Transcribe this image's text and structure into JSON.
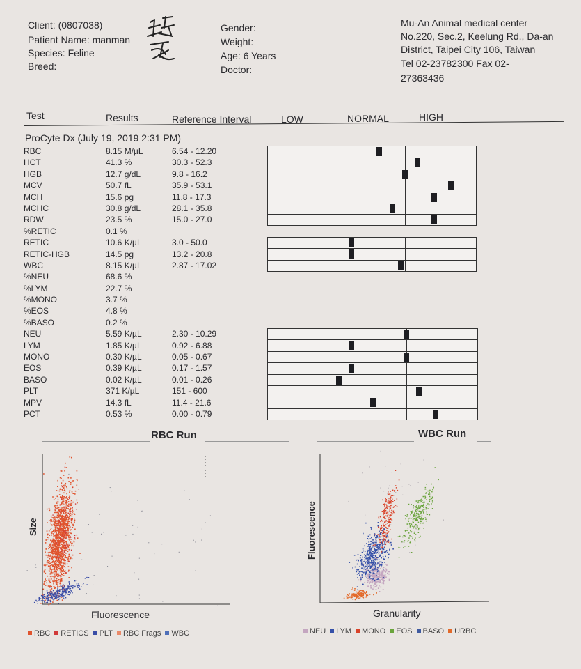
{
  "header": {
    "client": "Client: (0807038)",
    "patient_name": "Patient Name: manman",
    "species": "Species: Feline",
    "breed": "Breed:",
    "gender": "Gender:",
    "weight": "Weight:",
    "age": "Age: 6 Years",
    "doctor": "Doctor:",
    "clinic_name": "Mu-An Animal medical center",
    "clinic_addr1": "No.220, Sec.2, Keelung Rd., Da-an",
    "clinic_addr2": "District, Taipei City 106, Taiwan",
    "clinic_tel": "Tel 02-23782300  Fax 02-",
    "clinic_fax2": "27363436"
  },
  "columns": {
    "test": "Test",
    "results": "Results",
    "reference": "Reference Interval",
    "low": "LOW",
    "normal": "NORMAL",
    "high": "HIGH"
  },
  "section_title": "ProCyte Dx (July 19, 2019 2:31 PM)",
  "tests": [
    {
      "name": "RBC",
      "result": "8.15 M/µL",
      "ref": "6.54 - 12.20",
      "pos": 0.535
    },
    {
      "name": "HCT",
      "result": "41.3 %",
      "ref": "30.3 - 52.3",
      "pos": 0.72
    },
    {
      "name": "HGB",
      "result": "12.7 g/dL",
      "ref": "9.8 - 16.2",
      "pos": 0.66
    },
    {
      "name": "MCV",
      "result": "50.7 fL",
      "ref": "35.9 - 53.1",
      "pos": 0.88
    },
    {
      "name": "MCH",
      "result": "15.6 pg",
      "ref": "11.8 - 17.3",
      "pos": 0.8
    },
    {
      "name": "MCHC",
      "result": "30.8 g/dL",
      "ref": "28.1 - 35.8",
      "pos": 0.6
    },
    {
      "name": "RDW",
      "result": "23.5 %",
      "ref": "15.0 - 27.0",
      "pos": 0.8
    },
    {
      "name": "%RETIC",
      "result": "0.1 %",
      "ref": ""
    },
    {
      "name": "RETIC",
      "result": "10.6 K/µL",
      "ref": "3.0 - 50.0",
      "pos": 0.4
    },
    {
      "name": "RETIC-HGB",
      "result": "14.5 pg",
      "ref": "13.2 - 20.8",
      "pos": 0.4
    },
    {
      "name": "WBC",
      "result": "8.15 K/µL",
      "ref": "2.87 - 17.02",
      "pos": 0.64
    },
    {
      "name": "%NEU",
      "result": "68.6 %",
      "ref": ""
    },
    {
      "name": "%LYM",
      "result": "22.7 %",
      "ref": ""
    },
    {
      "name": "%MONO",
      "result": "3.7 %",
      "ref": ""
    },
    {
      "name": "%EOS",
      "result": "4.8 %",
      "ref": ""
    },
    {
      "name": "%BASO",
      "result": "0.2 %",
      "ref": ""
    },
    {
      "name": "NEU",
      "result": "5.59 K/µL",
      "ref": "2.30 - 10.29",
      "pos": 0.66
    },
    {
      "name": "LYM",
      "result": "1.85 K/µL",
      "ref": "0.92 - 6.88",
      "pos": 0.4
    },
    {
      "name": "MONO",
      "result": "0.30 K/µL",
      "ref": "0.05 - 0.67",
      "pos": 0.66
    },
    {
      "name": "EOS",
      "result": "0.39 K/µL",
      "ref": "0.17 - 1.57",
      "pos": 0.4
    },
    {
      "name": "BASO",
      "result": "0.02 K/µL",
      "ref": "0.01 - 0.26",
      "pos": 0.34
    },
    {
      "name": "PLT",
      "result": "371 K/µL",
      "ref": "151 - 600",
      "pos": 0.72
    },
    {
      "name": "MPV",
      "result": "14.3 fL",
      "ref": "11.4 - 21.6",
      "pos": 0.5
    },
    {
      "name": "PCT",
      "result": "0.53 %",
      "ref": "0.00 - 0.79",
      "pos": 0.8
    }
  ],
  "rbc_run": {
    "title": "RBC Run",
    "xlabel": "Fluorescence",
    "ylabel": "Size",
    "legend": [
      {
        "label": "RBC",
        "color": "#e0542e"
      },
      {
        "label": "RETICS",
        "color": "#d13a3a"
      },
      {
        "label": "PLT",
        "color": "#3a4da6"
      },
      {
        "label": "RBC Frags",
        "color": "#ea8a6a"
      },
      {
        "label": "WBC",
        "color": "#4f6fb8"
      }
    ]
  },
  "wbc_run": {
    "title": "WBC Run",
    "xlabel": "Granularity",
    "ylabel": "Fluorescence",
    "legend": [
      {
        "label": "NEU",
        "color": "#c4a6c0"
      },
      {
        "label": "LYM",
        "color": "#3550a8"
      },
      {
        "label": "MONO",
        "color": "#d9432a"
      },
      {
        "label": "EOS",
        "color": "#6aa43c"
      },
      {
        "label": "BASO",
        "color": "#3f5aa0"
      },
      {
        "label": "URBC",
        "color": "#e36a2a"
      }
    ]
  }
}
